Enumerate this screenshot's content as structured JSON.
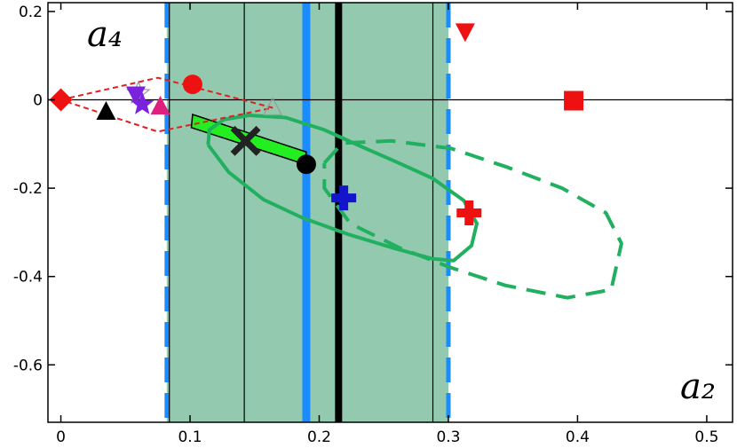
{
  "chart_data": {
    "type": "scatter",
    "title": "",
    "xlabel": "a₂",
    "ylabel": "a₄",
    "xlim": [
      -0.01,
      0.52
    ],
    "ylim": [
      -0.73,
      0.22
    ],
    "x_ticks": [
      0,
      0.1,
      0.2,
      0.3,
      0.4,
      0.5
    ],
    "x_tick_labels": [
      "0",
      "0.1",
      "0.2",
      "0.3",
      "0.4",
      "0.5"
    ],
    "y_ticks": [
      0.2,
      0,
      -0.2,
      -0.4,
      -0.6
    ],
    "y_tick_labels": [
      "0.2",
      "0",
      "-0.2",
      "-0.4",
      "-0.6"
    ],
    "grid": false,
    "colors": {
      "band_fill": "#93c9ae",
      "blue_line": "#1a8cff",
      "black_line": "#000000",
      "green_contour": "#20b060",
      "green_region": "#22ee22",
      "red_marker": "#ee1111",
      "purple_marker": "#7a22dd",
      "magenta_marker": "#e0207e",
      "dark_blue_marker": "#1414cc",
      "red_dashed": "#e02020"
    },
    "shaded_band": {
      "x_min": 0.082,
      "x_max": 0.3
    },
    "vertical_lines": [
      {
        "x": 0.082,
        "style": "blue-dashed",
        "color": "#1a8cff"
      },
      {
        "x": 0.3,
        "style": "blue-dashed",
        "color": "#1a8cff"
      },
      {
        "x": 0.19,
        "style": "blue-thick",
        "color": "#1a8cff"
      },
      {
        "x": 0.215,
        "style": "black-thick",
        "color": "#000000"
      },
      {
        "x": 0.142,
        "style": "black-thin",
        "color": "#000000"
      },
      {
        "x": 0.288,
        "style": "black-thin",
        "color": "#000000"
      },
      {
        "x": 0.084,
        "style": "black-thin",
        "color": "#000000"
      }
    ],
    "horizontal_line": {
      "y": 0
    },
    "green_region": [
      [
        0.102,
        -0.033
      ],
      [
        0.101,
        -0.063
      ],
      [
        0.189,
        -0.146
      ],
      [
        0.19,
        -0.118
      ]
    ],
    "solid_contour": [
      [
        0.114,
        -0.102
      ],
      [
        0.115,
        -0.068
      ],
      [
        0.126,
        -0.045
      ],
      [
        0.146,
        -0.035
      ],
      [
        0.174,
        -0.04
      ],
      [
        0.204,
        -0.068
      ],
      [
        0.232,
        -0.105
      ],
      [
        0.26,
        -0.141
      ],
      [
        0.288,
        -0.178
      ],
      [
        0.312,
        -0.228
      ],
      [
        0.322,
        -0.28
      ],
      [
        0.318,
        -0.33
      ],
      [
        0.304,
        -0.364
      ],
      [
        0.288,
        -0.36
      ],
      [
        0.258,
        -0.336
      ],
      [
        0.222,
        -0.304
      ],
      [
        0.187,
        -0.267
      ],
      [
        0.157,
        -0.226
      ],
      [
        0.13,
        -0.164
      ],
      [
        0.114,
        -0.102
      ]
    ],
    "dashed_contour": [
      [
        0.204,
        -0.143
      ],
      [
        0.218,
        -0.098
      ],
      [
        0.256,
        -0.093
      ],
      [
        0.302,
        -0.11
      ],
      [
        0.346,
        -0.153
      ],
      [
        0.388,
        -0.2
      ],
      [
        0.422,
        -0.256
      ],
      [
        0.434,
        -0.325
      ],
      [
        0.426,
        -0.43
      ],
      [
        0.392,
        -0.448
      ],
      [
        0.344,
        -0.42
      ],
      [
        0.302,
        -0.38
      ],
      [
        0.262,
        -0.335
      ],
      [
        0.224,
        -0.28
      ],
      [
        0.204,
        -0.2
      ],
      [
        0.204,
        -0.143
      ]
    ],
    "red_dashed_region": [
      [
        0,
        0
      ],
      [
        0.075,
        0.05
      ],
      [
        0.164,
        -0.018
      ],
      [
        0.075,
        -0.072
      ],
      [
        0,
        0
      ]
    ],
    "markers": [
      {
        "shape": "diamond",
        "color": "#ee1111",
        "x": 0.0,
        "y": 0.0
      },
      {
        "shape": "star-outline",
        "color": "#999999",
        "x": 0.06,
        "y": 0.015
      },
      {
        "shape": "triangle-up",
        "color": "#000000",
        "x": 0.035,
        "y": -0.027
      },
      {
        "shape": "triangle-down",
        "color": "#7a22dd",
        "x": 0.058,
        "y": 0.012
      },
      {
        "shape": "star",
        "color": "#7a22dd",
        "x": 0.063,
        "y": -0.01
      },
      {
        "shape": "triangle-up",
        "color": "#e0207e",
        "x": 0.077,
        "y": -0.015
      },
      {
        "shape": "circle",
        "color": "#ee1111",
        "x": 0.102,
        "y": 0.035
      },
      {
        "shape": "triangle-up-outline",
        "color": "#999999",
        "x": 0.164,
        "y": -0.018
      },
      {
        "shape": "x-cross",
        "color": "#222222",
        "x": 0.143,
        "y": -0.093
      },
      {
        "shape": "circle",
        "color": "#000000",
        "x": 0.19,
        "y": -0.146
      },
      {
        "shape": "plus",
        "color": "#1414cc",
        "x": 0.219,
        "y": -0.222
      },
      {
        "shape": "plus",
        "color": "#ee1111",
        "x": 0.316,
        "y": -0.256
      },
      {
        "shape": "triangle-down",
        "color": "#ee1111",
        "x": 0.313,
        "y": 0.155
      },
      {
        "shape": "square",
        "color": "#ee1111",
        "x": 0.397,
        "y": -0.002
      }
    ]
  }
}
